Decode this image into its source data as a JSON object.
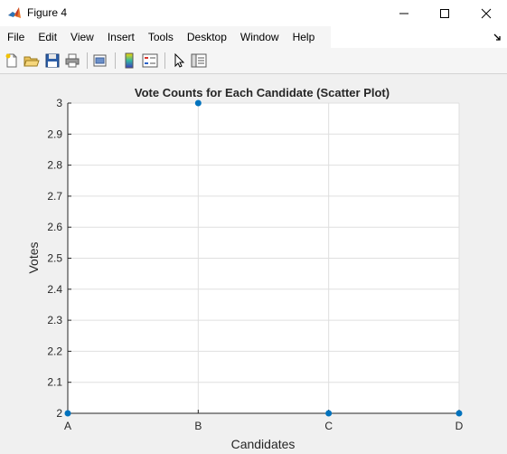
{
  "window": {
    "title": "Figure 4"
  },
  "menu": {
    "items": [
      "File",
      "Edit",
      "View",
      "Insert",
      "Tools",
      "Desktop",
      "Window",
      "Help"
    ]
  },
  "toolbar": {
    "buttons": [
      "new-figure-icon",
      "open-icon",
      "save-icon",
      "print-icon",
      "print-preview-icon",
      "colorbar-icon",
      "legend-icon",
      "pointer-icon",
      "property-inspector-icon"
    ]
  },
  "chart_data": {
    "type": "scatter",
    "title": "Vote Counts for Each Candidate (Scatter Plot)",
    "xlabel": "Candidates",
    "ylabel": "Votes",
    "categories": [
      "A",
      "B",
      "C",
      "D"
    ],
    "values": [
      2,
      3,
      2,
      2
    ],
    "ylim": [
      2,
      3
    ],
    "yticks": [
      "2",
      "2.1",
      "2.2",
      "2.3",
      "2.4",
      "2.5",
      "2.6",
      "2.7",
      "2.8",
      "2.9",
      "3"
    ],
    "grid": true,
    "marker_color": "#0072bd"
  }
}
